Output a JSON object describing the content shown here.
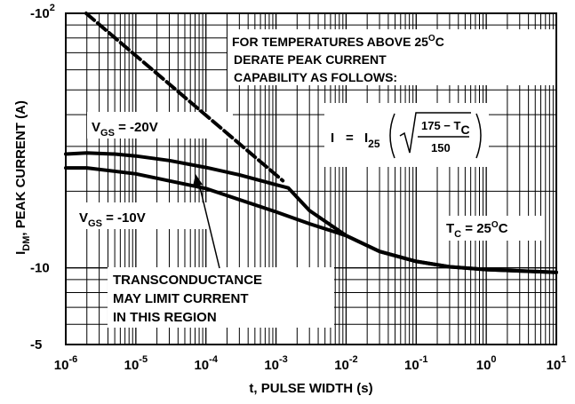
{
  "chart_data": {
    "type": "line",
    "xlabel": "t, PULSE WIDTH (s)",
    "ylabel": "I",
    "ylabel_sub": "DM",
    "ylabel_rest": ", PEAK CURRENT (A)",
    "x_scale": "log",
    "y_scale": "log",
    "xlim": [
      1e-06,
      10
    ],
    "ylim": [
      -5,
      -100
    ],
    "grid": true,
    "x_ticks": [
      {
        "mant": "10",
        "exp": "-6"
      },
      {
        "mant": "10",
        "exp": "-5"
      },
      {
        "mant": "10",
        "exp": "-4"
      },
      {
        "mant": "10",
        "exp": "-3"
      },
      {
        "mant": "10",
        "exp": "-2"
      },
      {
        "mant": "10",
        "exp": "-1"
      },
      {
        "mant": "10",
        "exp": "0"
      },
      {
        "mant": "10",
        "exp": "1"
      }
    ],
    "y_ticks": [
      {
        "label": "-10",
        "exp": "2",
        "value": -100
      },
      {
        "label": "-10",
        "exp": "",
        "value": -10
      },
      {
        "label": "-5",
        "exp": "",
        "value": -5
      }
    ],
    "series": [
      {
        "name": "VGS = -20V",
        "x": [
          1e-06,
          2e-06,
          5e-06,
          1e-05,
          3e-05,
          0.0001,
          0.0003,
          0.001,
          0.0015,
          0.003,
          0.01,
          0.03,
          0.1,
          0.3,
          1,
          10
        ],
        "y": [
          -28,
          -28.3,
          -28,
          -27.5,
          -26.4,
          -24.8,
          -23.2,
          -21.2,
          -20.6,
          -16.8,
          -13.4,
          -11.6,
          -10.6,
          -10.1,
          -9.85,
          -9.6
        ]
      },
      {
        "name": "VGS = -10V",
        "x": [
          1e-06,
          2e-06,
          1e-05,
          0.0001,
          0.001,
          0.003,
          0.01,
          0.03,
          0.1,
          0.3,
          1,
          10
        ],
        "y": [
          -24.7,
          -24.7,
          -23.4,
          -20.5,
          -16.6,
          -14.9,
          -13.4,
          -11.6,
          -10.6,
          -10.1,
          -9.85,
          -9.6
        ]
      },
      {
        "name": "derating limit",
        "color": "#e02020",
        "style": "dashed",
        "x": [
          1.95e-06,
          0.00125
        ],
        "y": [
          -100,
          -22
        ]
      }
    ],
    "annotations": {
      "vgs20": {
        "pre": "V",
        "sub": "GS",
        "post": " = -20V"
      },
      "vgs10": {
        "pre": "V",
        "sub": "GS",
        "post": " = -10V"
      },
      "tc": {
        "pre": "T",
        "sub": "C",
        "eq": " = 25",
        "sup": "O",
        "post": "C"
      },
      "temp_note": {
        "line1": "FOR TEMPERATURES ABOVE 25",
        "line1_sup": "O",
        "line1_end": "C",
        "line2": "DERATE PEAK CURRENT",
        "line3": "CAPABILITY AS FOLLOWS:"
      },
      "formula": {
        "lhs": "I",
        "eq": "=",
        "i25": "I",
        "i25_sub": "25",
        "num": "175 − T",
        "num_sub": "C",
        "den": "150"
      },
      "transconductance": [
        "TRANSCONDUCTANCE",
        "MAY LIMIT CURRENT",
        "IN THIS REGION"
      ]
    }
  }
}
